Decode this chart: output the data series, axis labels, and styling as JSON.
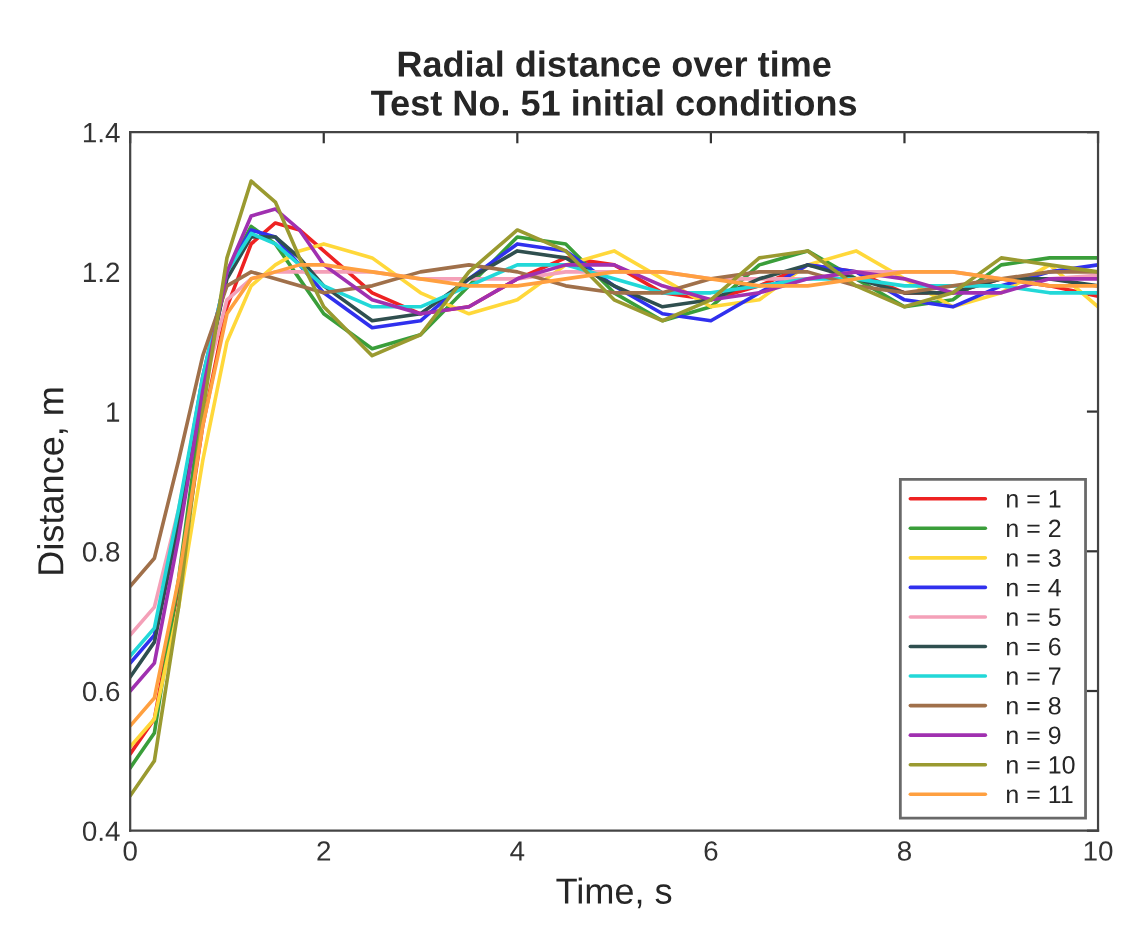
{
  "chart_data": {
    "type": "line",
    "title": "Radial distance over time",
    "subtitle": "Test No. 51 initial conditions",
    "xlabel": "Time, s",
    "ylabel": "Distance, m",
    "x": [
      0,
      0.25,
      0.5,
      0.75,
      1,
      1.25,
      1.5,
      1.75,
      2,
      2.5,
      3,
      3.5,
      4,
      4.5,
      5,
      5.5,
      6,
      6.5,
      7,
      7.5,
      8,
      8.5,
      9,
      9.5,
      10
    ],
    "xlim": [
      0,
      10
    ],
    "xticks": [
      0,
      2,
      4,
      6,
      8,
      10
    ],
    "ylim": [
      0.4,
      1.4
    ],
    "yticks": [
      0.4,
      0.6,
      0.8,
      1,
      1.2,
      1.4
    ],
    "grid": false,
    "legend": "bottom right",
    "marker": "none",
    "line_style": "solid",
    "series": [
      {
        "name": "n = 1",
        "color": "#ee2222",
        "values": [
          0.51,
          0.56,
          0.75,
          0.98,
          1.15,
          1.24,
          1.27,
          1.26,
          1.23,
          1.17,
          1.14,
          1.15,
          1.19,
          1.22,
          1.21,
          1.17,
          1.16,
          1.18,
          1.21,
          1.2,
          1.17,
          1.17,
          1.19,
          1.18,
          1.165
        ]
      },
      {
        "name": "n = 2",
        "color": "#3a9e3a",
        "values": [
          0.49,
          0.54,
          0.76,
          1.02,
          1.2,
          1.265,
          1.24,
          1.19,
          1.14,
          1.09,
          1.11,
          1.18,
          1.25,
          1.24,
          1.17,
          1.13,
          1.15,
          1.21,
          1.23,
          1.19,
          1.15,
          1.16,
          1.21,
          1.22,
          1.22
        ]
      },
      {
        "name": "n = 3",
        "color": "#ffd83a",
        "values": [
          0.52,
          0.56,
          0.72,
          0.93,
          1.1,
          1.18,
          1.21,
          1.23,
          1.24,
          1.22,
          1.17,
          1.14,
          1.16,
          1.21,
          1.23,
          1.19,
          1.15,
          1.16,
          1.21,
          1.23,
          1.19,
          1.15,
          1.17,
          1.21,
          1.15
        ]
      },
      {
        "name": "n = 4",
        "color": "#3030ee",
        "values": [
          0.64,
          0.68,
          0.85,
          1.05,
          1.2,
          1.26,
          1.25,
          1.21,
          1.17,
          1.12,
          1.13,
          1.19,
          1.24,
          1.23,
          1.18,
          1.14,
          1.13,
          1.17,
          1.21,
          1.2,
          1.16,
          1.15,
          1.18,
          1.2,
          1.21
        ]
      },
      {
        "name": "n = 5",
        "color": "#f4a0b8",
        "values": [
          0.68,
          0.72,
          0.86,
          1.03,
          1.16,
          1.19,
          1.2,
          1.2,
          1.2,
          1.2,
          1.19,
          1.19,
          1.19,
          1.2,
          1.2,
          1.2,
          1.19,
          1.19,
          1.19,
          1.2,
          1.2,
          1.2,
          1.19,
          1.19,
          1.195
        ]
      },
      {
        "name": "n = 6",
        "color": "#2f4f4f",
        "values": [
          0.62,
          0.67,
          0.84,
          1.04,
          1.19,
          1.25,
          1.25,
          1.22,
          1.18,
          1.13,
          1.14,
          1.19,
          1.23,
          1.22,
          1.18,
          1.15,
          1.16,
          1.19,
          1.21,
          1.19,
          1.17,
          1.17,
          1.19,
          1.19,
          1.18
        ]
      },
      {
        "name": "n = 7",
        "color": "#22d8d8",
        "values": [
          0.65,
          0.69,
          0.86,
          1.05,
          1.2,
          1.255,
          1.24,
          1.21,
          1.18,
          1.15,
          1.15,
          1.18,
          1.21,
          1.21,
          1.19,
          1.17,
          1.17,
          1.18,
          1.19,
          1.19,
          1.18,
          1.18,
          1.18,
          1.17,
          1.17
        ]
      },
      {
        "name": "n = 8",
        "color": "#a0704a",
        "values": [
          0.75,
          0.79,
          0.93,
          1.08,
          1.18,
          1.2,
          1.19,
          1.18,
          1.17,
          1.18,
          1.2,
          1.21,
          1.2,
          1.18,
          1.17,
          1.17,
          1.19,
          1.2,
          1.2,
          1.18,
          1.17,
          1.18,
          1.19,
          1.2,
          1.2
        ]
      },
      {
        "name": "n = 9",
        "color": "#a030b0",
        "values": [
          0.6,
          0.64,
          0.82,
          1.03,
          1.2,
          1.28,
          1.29,
          1.26,
          1.21,
          1.16,
          1.14,
          1.15,
          1.19,
          1.21,
          1.21,
          1.18,
          1.16,
          1.17,
          1.19,
          1.2,
          1.19,
          1.17,
          1.17,
          1.19,
          1.19
        ]
      },
      {
        "name": "n = 10",
        "color": "#9a9a30",
        "values": [
          0.45,
          0.5,
          0.72,
          1.0,
          1.22,
          1.33,
          1.3,
          1.22,
          1.15,
          1.08,
          1.11,
          1.2,
          1.26,
          1.23,
          1.16,
          1.13,
          1.16,
          1.22,
          1.23,
          1.18,
          1.15,
          1.17,
          1.22,
          1.21,
          1.2
        ]
      },
      {
        "name": "n = 11",
        "color": "#ffa040",
        "values": [
          0.55,
          0.59,
          0.76,
          0.98,
          1.14,
          1.19,
          1.2,
          1.21,
          1.21,
          1.2,
          1.19,
          1.18,
          1.18,
          1.19,
          1.2,
          1.2,
          1.19,
          1.18,
          1.18,
          1.19,
          1.2,
          1.2,
          1.19,
          1.18,
          1.18
        ]
      }
    ]
  }
}
